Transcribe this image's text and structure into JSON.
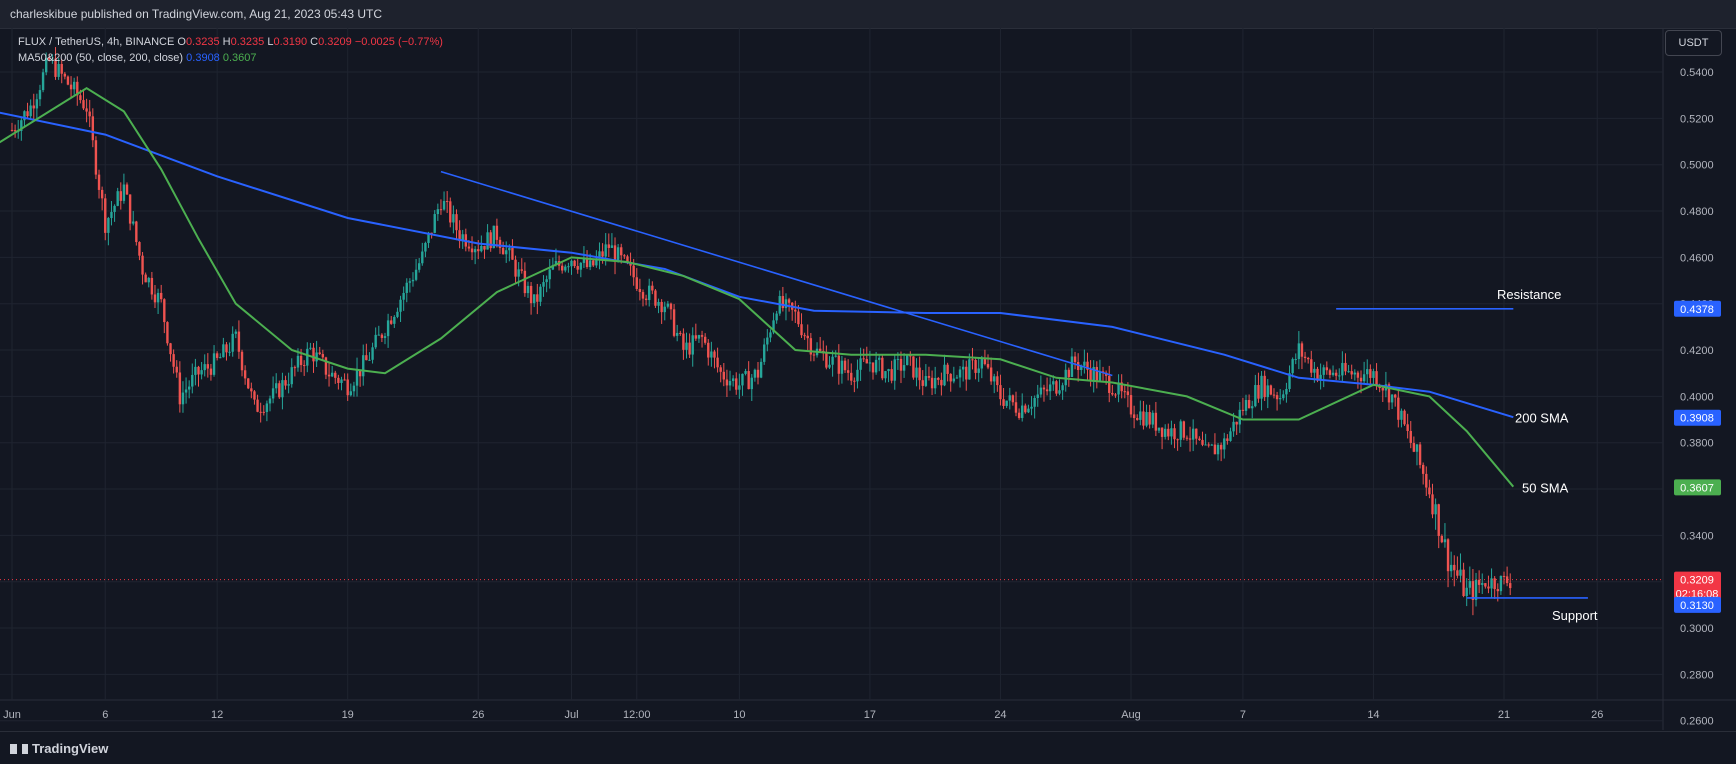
{
  "header": {
    "published": "charleskibue published on TradingView.com, Aug 21, 2023 05:43 UTC"
  },
  "legend": {
    "symbol": "FLUX / TetherUS, 4h, BINANCE",
    "o_label": "O",
    "o": "0.3235",
    "h_label": "H",
    "h": "0.3235",
    "l_label": "L",
    "l": "0.3190",
    "c_label": "C",
    "c": "0.3209",
    "change": "−0.0025 (−0.77%)",
    "ma_label": "MA50&200 (50, close, 200, close)",
    "ma200_value": "0.3908",
    "ma50_value": "0.3607"
  },
  "currency_button": "USDT",
  "annotations": {
    "resistance": "Resistance",
    "sma200": "200 SMA",
    "sma50": "50 SMA",
    "support": "Support"
  },
  "price_badges": {
    "resistance": "0.4378",
    "sma200": "0.3908",
    "sma50": "0.3607",
    "last": "0.3209",
    "countdown": "02:16:08",
    "support": "0.3130"
  },
  "colors": {
    "up": "#26a69a",
    "down": "#ef5350",
    "sma200": "#2962ff",
    "sma50": "#4caf50",
    "bg": "#131722"
  },
  "footer": {
    "brand": "TradingView"
  },
  "chart_data": {
    "type": "candlestick",
    "y_ticks": [
      "0.5400",
      "0.5200",
      "0.5000",
      "0.4800",
      "0.4600",
      "0.4400",
      "0.4200",
      "0.4000",
      "0.3800",
      "0.3600",
      "0.3400",
      "0.3200",
      "0.3000",
      "0.2800",
      "0.2600"
    ],
    "ylim": [
      0.256,
      0.559
    ],
    "x_ticks": [
      {
        "label": "Jun",
        "day": 1
      },
      {
        "label": "6",
        "day": 6
      },
      {
        "label": "12",
        "day": 12
      },
      {
        "label": "19",
        "day": 19
      },
      {
        "label": "26",
        "day": 26
      },
      {
        "label": "Jul",
        "day": 31
      },
      {
        "label": "12:00",
        "day": 34.5
      },
      {
        "label": "10",
        "day": 40
      },
      {
        "label": "17",
        "day": 47
      },
      {
        "label": "24",
        "day": 54
      },
      {
        "label": "Aug",
        "day": 61
      },
      {
        "label": "7",
        "day": 67
      },
      {
        "label": "14",
        "day": 74
      },
      {
        "label": "21",
        "day": 81
      },
      {
        "label": "26",
        "day": 86
      }
    ],
    "price_path": [
      [
        1,
        0.515
      ],
      [
        2,
        0.525
      ],
      [
        3,
        0.545
      ],
      [
        4,
        0.535
      ],
      [
        5,
        0.525
      ],
      [
        6,
        0.475
      ],
      [
        7,
        0.49
      ],
      [
        8,
        0.455
      ],
      [
        9,
        0.44
      ],
      [
        10,
        0.4
      ],
      [
        11,
        0.41
      ],
      [
        12,
        0.415
      ],
      [
        13,
        0.425
      ],
      [
        14,
        0.395
      ],
      [
        15,
        0.4
      ],
      [
        16,
        0.41
      ],
      [
        17,
        0.42
      ],
      [
        18,
        0.41
      ],
      [
        19,
        0.405
      ],
      [
        20,
        0.415
      ],
      [
        21,
        0.43
      ],
      [
        22,
        0.445
      ],
      [
        23,
        0.46
      ],
      [
        24,
        0.485
      ],
      [
        25,
        0.47
      ],
      [
        26,
        0.465
      ],
      [
        27,
        0.47
      ],
      [
        28,
        0.455
      ],
      [
        29,
        0.44
      ],
      [
        30,
        0.455
      ],
      [
        31,
        0.46
      ],
      [
        32,
        0.455
      ],
      [
        33,
        0.465
      ],
      [
        34,
        0.455
      ],
      [
        35,
        0.445
      ],
      [
        36,
        0.44
      ],
      [
        37,
        0.42
      ],
      [
        38,
        0.425
      ],
      [
        39,
        0.41
      ],
      [
        40,
        0.405
      ],
      [
        41,
        0.41
      ],
      [
        42,
        0.44
      ],
      [
        43,
        0.435
      ],
      [
        44,
        0.42
      ],
      [
        45,
        0.415
      ],
      [
        46,
        0.41
      ],
      [
        47,
        0.415
      ],
      [
        48,
        0.41
      ],
      [
        49,
        0.415
      ],
      [
        50,
        0.405
      ],
      [
        51,
        0.41
      ],
      [
        52,
        0.41
      ],
      [
        53,
        0.415
      ],
      [
        54,
        0.4
      ],
      [
        55,
        0.395
      ],
      [
        56,
        0.4
      ],
      [
        57,
        0.405
      ],
      [
        58,
        0.415
      ],
      [
        59,
        0.41
      ],
      [
        60,
        0.405
      ],
      [
        61,
        0.395
      ],
      [
        62,
        0.39
      ],
      [
        63,
        0.385
      ],
      [
        64,
        0.385
      ],
      [
        65,
        0.375
      ],
      [
        66,
        0.38
      ],
      [
        67,
        0.395
      ],
      [
        68,
        0.405
      ],
      [
        69,
        0.4
      ],
      [
        70,
        0.42
      ],
      [
        71,
        0.41
      ],
      [
        72,
        0.41
      ],
      [
        73,
        0.41
      ],
      [
        74,
        0.41
      ],
      [
        75,
        0.4
      ],
      [
        76,
        0.38
      ],
      [
        77,
        0.36
      ],
      [
        78,
        0.33
      ],
      [
        79,
        0.315
      ],
      [
        80,
        0.32
      ],
      [
        81,
        0.32
      ],
      [
        81.5,
        0.321
      ]
    ],
    "series": [
      {
        "name": "200 SMA",
        "points": [
          [
            0,
            0.523
          ],
          [
            6,
            0.513
          ],
          [
            12,
            0.495
          ],
          [
            19,
            0.477
          ],
          [
            26,
            0.466
          ],
          [
            31,
            0.462
          ],
          [
            36,
            0.455
          ],
          [
            40,
            0.443
          ],
          [
            44,
            0.437
          ],
          [
            50,
            0.436
          ],
          [
            54,
            0.436
          ],
          [
            60,
            0.43
          ],
          [
            66,
            0.418
          ],
          [
            70,
            0.408
          ],
          [
            74,
            0.405
          ],
          [
            77,
            0.402
          ],
          [
            81.5,
            0.391
          ]
        ]
      },
      {
        "name": "50 SMA",
        "points": [
          [
            0,
            0.508
          ],
          [
            3,
            0.523
          ],
          [
            5,
            0.533
          ],
          [
            7,
            0.523
          ],
          [
            9,
            0.498
          ],
          [
            11,
            0.468
          ],
          [
            13,
            0.44
          ],
          [
            16,
            0.42
          ],
          [
            19,
            0.412
          ],
          [
            21,
            0.41
          ],
          [
            24,
            0.425
          ],
          [
            27,
            0.445
          ],
          [
            31,
            0.46
          ],
          [
            34,
            0.458
          ],
          [
            37,
            0.452
          ],
          [
            40,
            0.442
          ],
          [
            43,
            0.42
          ],
          [
            46,
            0.418
          ],
          [
            50,
            0.418
          ],
          [
            54,
            0.416
          ],
          [
            57,
            0.408
          ],
          [
            60,
            0.406
          ],
          [
            64,
            0.4
          ],
          [
            67,
            0.39
          ],
          [
            70,
            0.39
          ],
          [
            74,
            0.405
          ],
          [
            77,
            0.4
          ],
          [
            79,
            0.385
          ],
          [
            81.5,
            0.361
          ]
        ]
      }
    ],
    "trendlines": [
      {
        "from": [
          24,
          0.497
        ],
        "to": [
          60,
          0.409
        ]
      },
      {
        "from": [
          72,
          0.4378
        ],
        "to": [
          81.5,
          0.4378
        ],
        "label": "Resistance"
      },
      {
        "from": [
          79,
          0.313
        ],
        "to": [
          85.5,
          0.313
        ],
        "label": "Support"
      }
    ],
    "last_price": 0.3209
  }
}
